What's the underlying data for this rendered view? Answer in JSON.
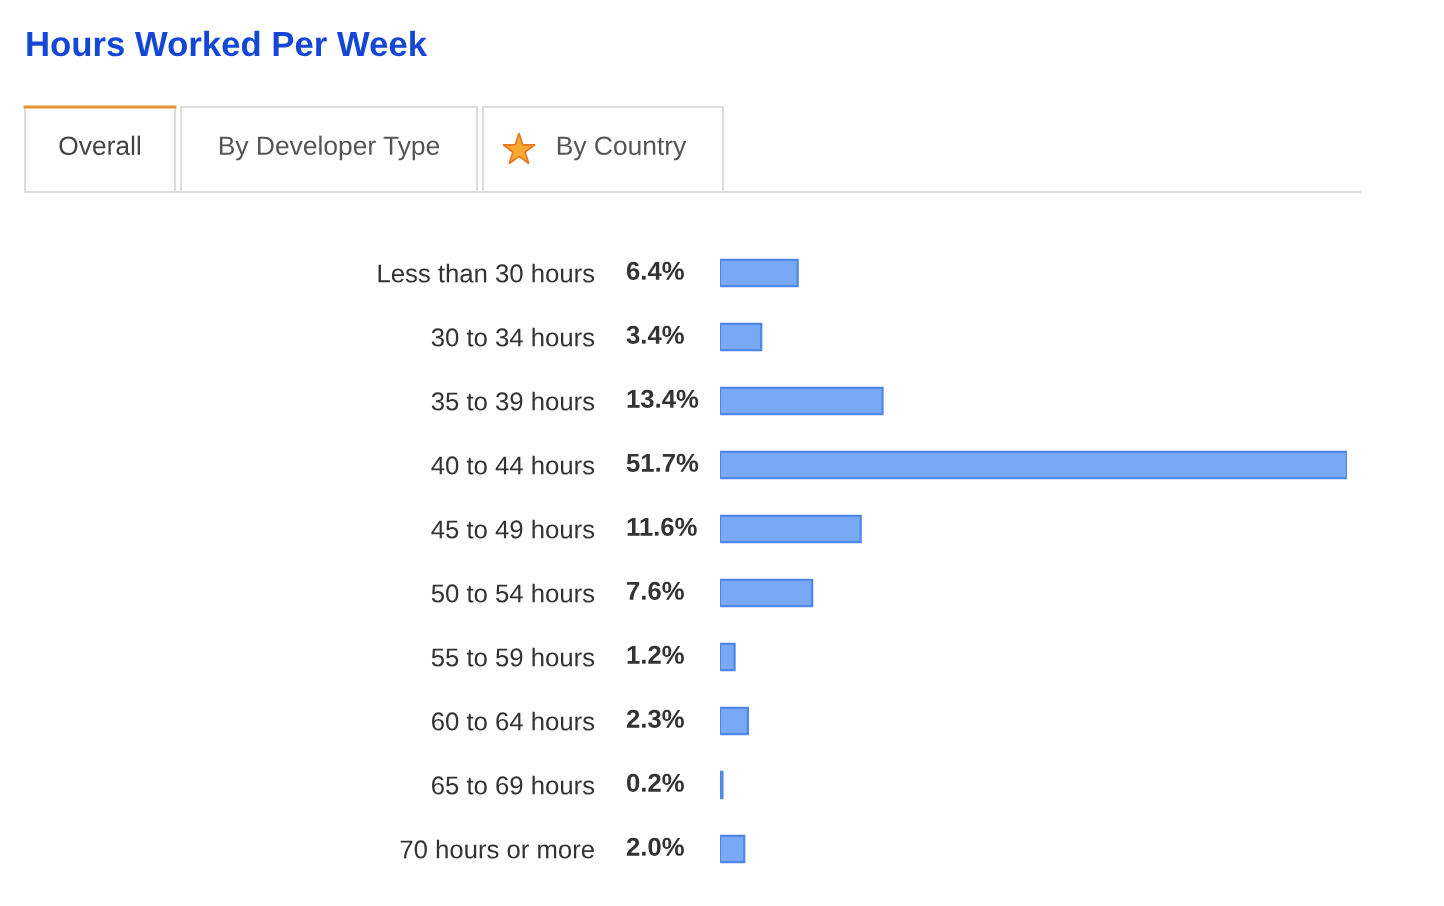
{
  "chart_data": {
    "type": "bar",
    "orientation": "horizontal",
    "title": "Hours Worked Per Week",
    "annotations": [
      "Overall",
      "By Developer Type",
      "By Country"
    ],
    "categories": [
      "Less than 30 hours",
      "30 to 34 hours",
      "35 to 39 hours",
      "40 to 44 hours",
      "45 to 49 hours",
      "50 to 54 hours",
      "55 to 59 hours",
      "60 to 64 hours",
      "65 to 69 hours",
      "70 hours or more"
    ],
    "values": [
      6.4,
      3.4,
      13.4,
      51.7,
      11.6,
      7.6,
      1.2,
      2.3,
      0.2,
      2.0
    ],
    "value_labels": [
      "6.4%",
      "3.4%",
      "13.4%",
      "51.7%",
      "11.6%",
      "7.6%",
      "1.2%",
      "2.3%",
      "0.2%",
      "2.0%"
    ],
    "color": "#79a9f5",
    "grid": false,
    "legend": false
  }
}
